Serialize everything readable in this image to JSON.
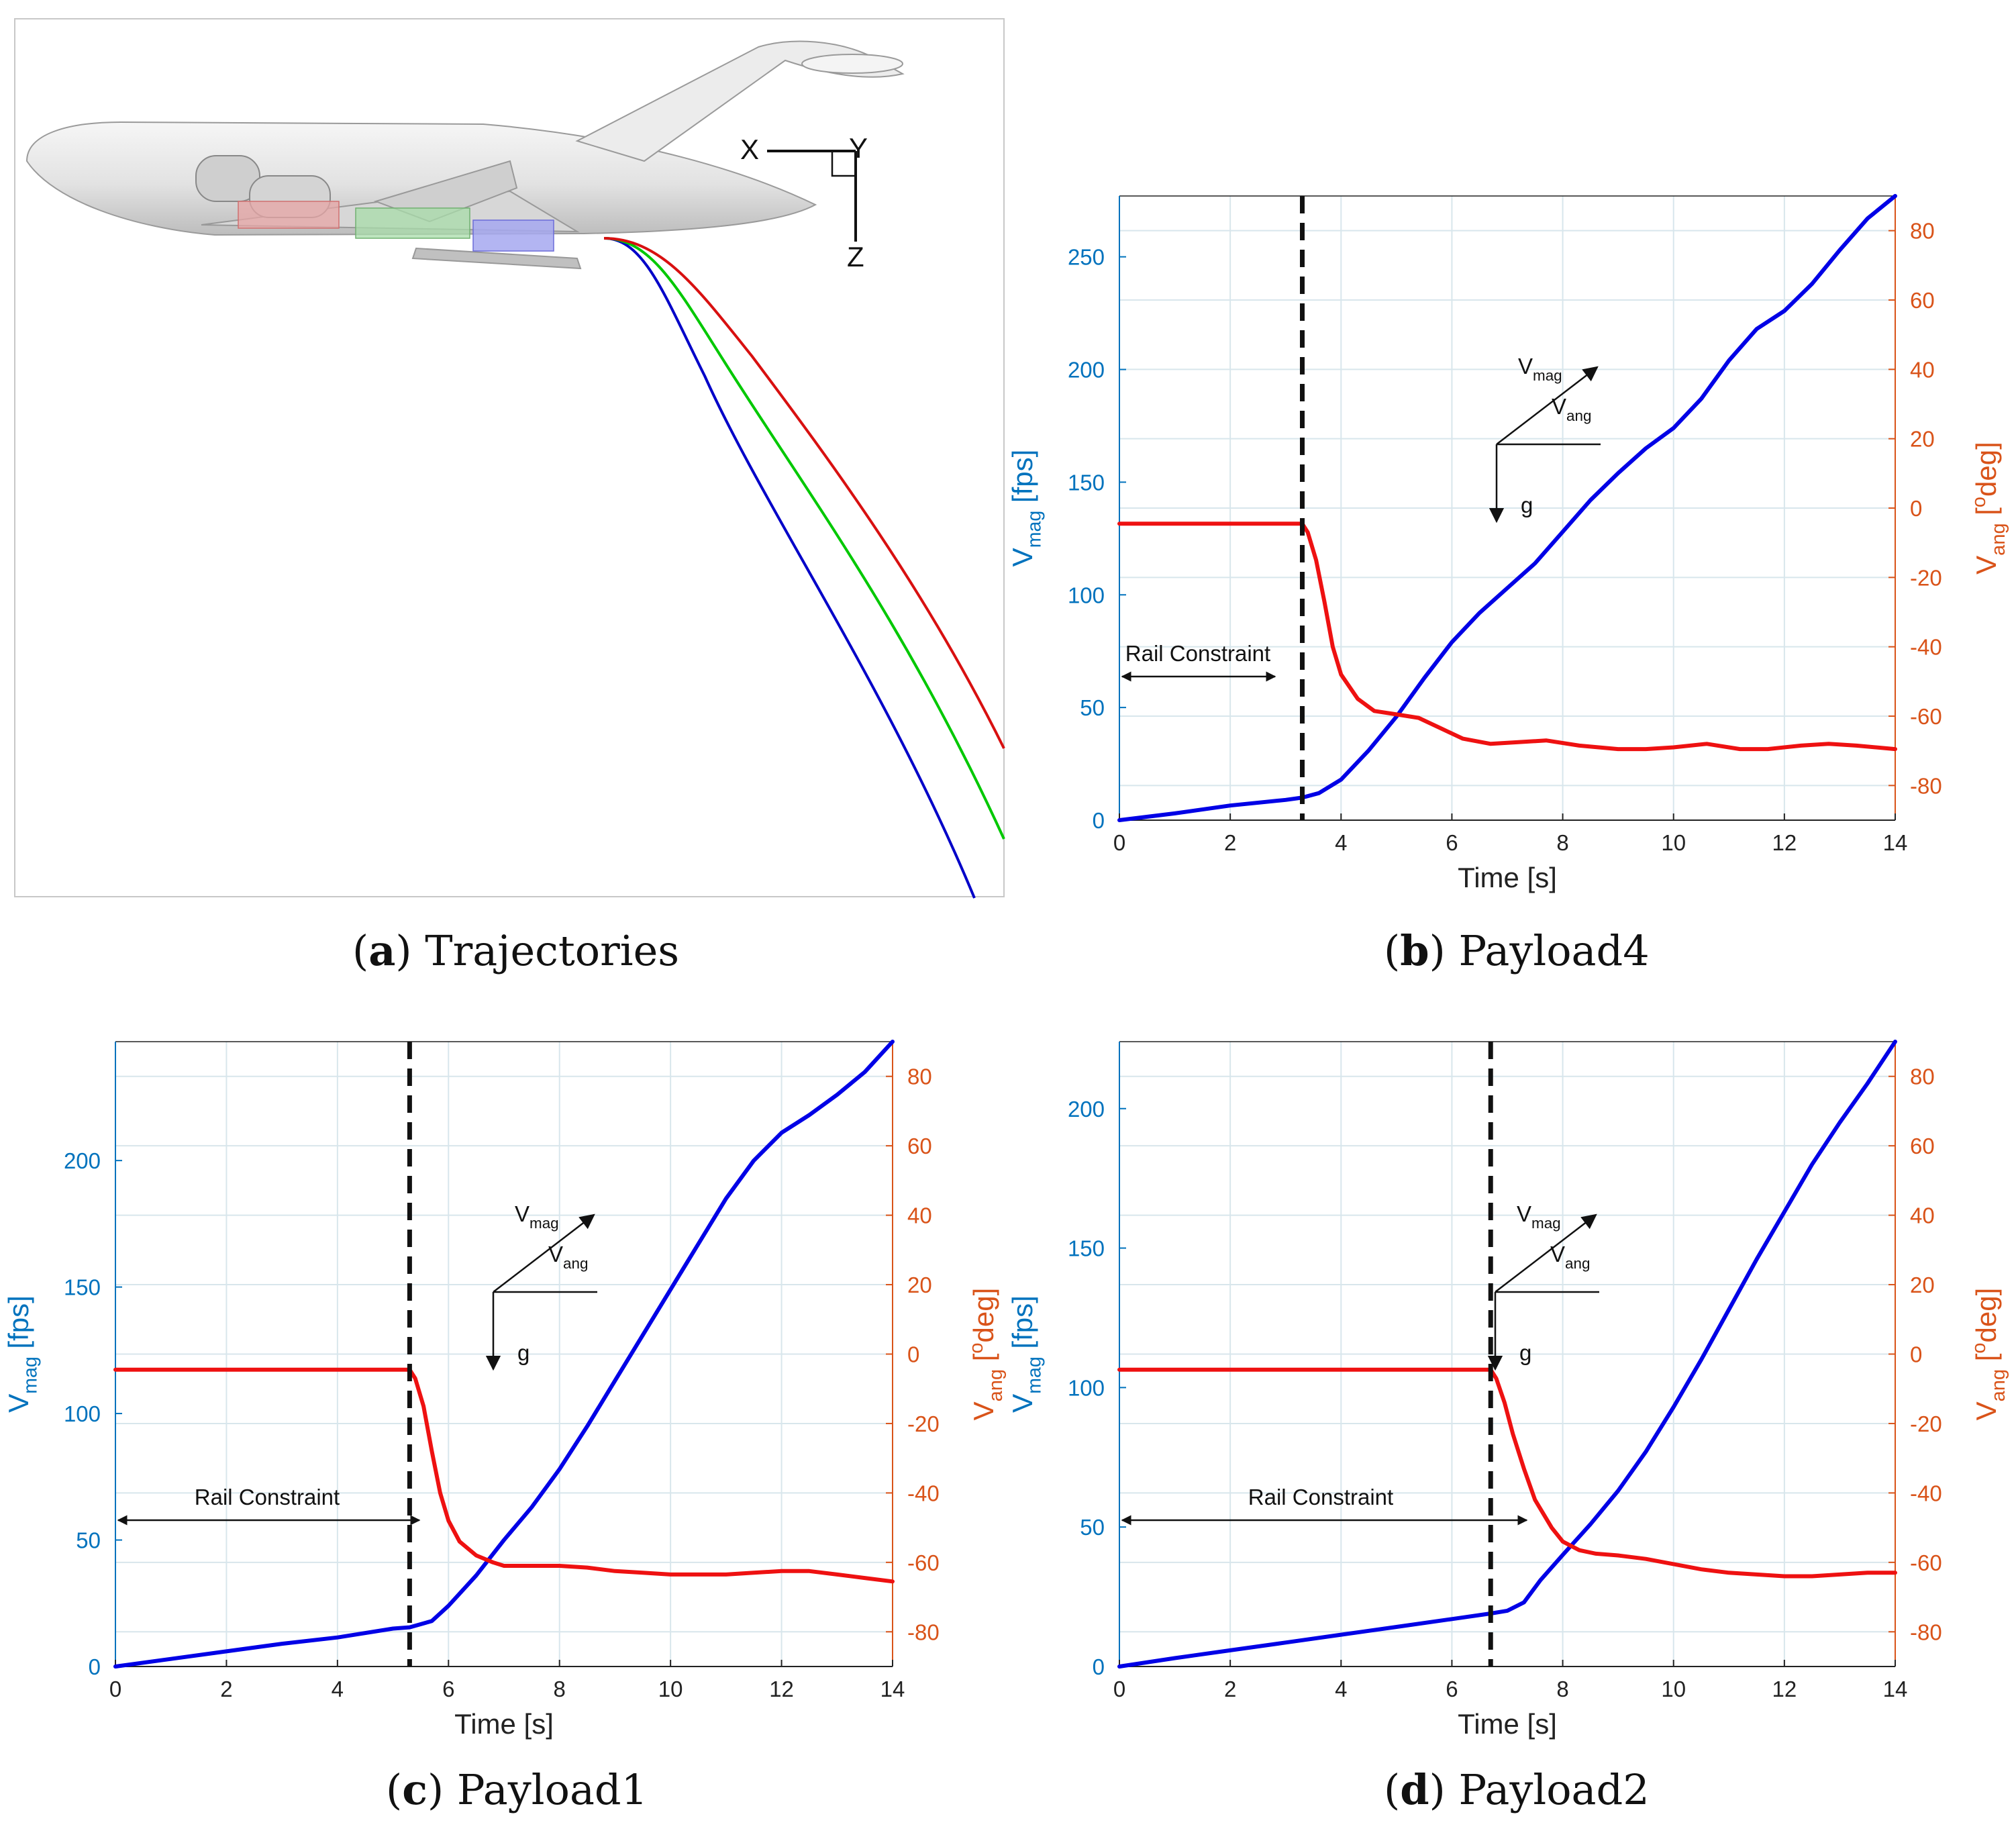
{
  "captions": [
    {
      "tag": "a",
      "text": "Trajectories"
    },
    {
      "tag": "b",
      "text": "Payload4"
    },
    {
      "tag": "c",
      "text": "Payload1"
    },
    {
      "tag": "d",
      "text": "Payload2"
    }
  ],
  "trajectory_panel": {
    "axis_labels": {
      "x": "X",
      "y": "Y",
      "z": "Z"
    },
    "trajectory_colors": [
      "#0000c8",
      "#00c800",
      "#d81010"
    ]
  },
  "plot_text": {
    "xlabel": "Time [s]",
    "ylabel_left": {
      "main": "V",
      "sub": "mag",
      "unit": " [fps]"
    },
    "ylabel_right": {
      "main": "V",
      "sub": "ang",
      "unit_pre": " [",
      "sup": "o",
      "unit_post": "deg]"
    },
    "rail_label": "Rail Constraint",
    "vmag_label": {
      "main": "V",
      "sub": "mag"
    },
    "vang_label": {
      "main": "V",
      "sub": "ang"
    },
    "g_label": "g"
  },
  "colors": {
    "vmag": "#0000e6",
    "vang": "#ee1111",
    "left_axis": "#0072bd",
    "right_axis": "#d95319",
    "grid": "#d8e6ec"
  },
  "chart_data": [
    {
      "type": "line",
      "panel": "b",
      "title": "Payload4",
      "xlabel": "Time [s]",
      "ylabel": "Vmag [fps]",
      "ylabel_right": "Vang [odeg]",
      "xlim": [
        0,
        14
      ],
      "ylim": [
        0,
        277
      ],
      "ylim_right": [
        -90,
        90
      ],
      "xticks": [
        0,
        2,
        4,
        6,
        8,
        10,
        12,
        14
      ],
      "yticks": [
        0,
        50,
        100,
        150,
        200,
        250
      ],
      "yticks_right": [
        -80,
        -60,
        -40,
        -20,
        0,
        20,
        40,
        60,
        80
      ],
      "grid": true,
      "rail_release_time": 3.3,
      "series": [
        {
          "name": "Vmag",
          "axis": "left",
          "x": [
            0,
            1,
            2,
            3,
            3.3,
            3.6,
            4,
            4.5,
            5,
            5.5,
            6,
            6.5,
            7,
            7.5,
            8,
            8.5,
            9,
            9.5,
            10,
            10.5,
            11,
            11.5,
            12,
            12.5,
            13,
            13.5,
            14
          ],
          "y": [
            0,
            3,
            6.5,
            9,
            10,
            12,
            18,
            31,
            46,
            63,
            79,
            92,
            103,
            114,
            128,
            142,
            154,
            165,
            174,
            187,
            204,
            218,
            226,
            238,
            253,
            267,
            277
          ]
        },
        {
          "name": "Vang",
          "axis": "right",
          "x": [
            0,
            3.3,
            3.4,
            3.55,
            3.7,
            3.85,
            4,
            4.3,
            4.6,
            5,
            5.4,
            5.8,
            6.2,
            6.7,
            7.2,
            7.7,
            8.3,
            9,
            9.5,
            10,
            10.6,
            11.2,
            11.7,
            12.3,
            12.8,
            13.3,
            14
          ],
          "y": [
            -4.5,
            -4.5,
            -7,
            -15,
            -27,
            -40,
            -48,
            -55,
            -58.5,
            -59.5,
            -60.5,
            -63.5,
            -66.5,
            -68,
            -67.5,
            -67,
            -68.5,
            -69.5,
            -69.5,
            -69,
            -68,
            -69.5,
            -69.5,
            -68.5,
            -68,
            -68.5,
            -69.5
          ]
        }
      ]
    },
    {
      "type": "line",
      "panel": "c",
      "title": "Payload1",
      "xlabel": "Time [s]",
      "ylabel": "Vmag [fps]",
      "ylabel_right": "Vang [odeg]",
      "xlim": [
        0,
        14
      ],
      "ylim": [
        0,
        247
      ],
      "ylim_right": [
        -90,
        90
      ],
      "xticks": [
        0,
        2,
        4,
        6,
        8,
        10,
        12,
        14
      ],
      "yticks": [
        0,
        50,
        100,
        150,
        200
      ],
      "yticks_right": [
        -80,
        -60,
        -40,
        -20,
        0,
        20,
        40,
        60,
        80
      ],
      "grid": true,
      "rail_release_time": 5.3,
      "series": [
        {
          "name": "Vmag",
          "axis": "left",
          "x": [
            0,
            1,
            2,
            3,
            4,
            5,
            5.3,
            5.7,
            6,
            6.5,
            7,
            7.5,
            8,
            8.5,
            9,
            9.5,
            10,
            10.5,
            11,
            11.5,
            12,
            12.5,
            13,
            13.5,
            14
          ],
          "y": [
            0,
            3,
            6,
            9,
            11.5,
            15,
            15.5,
            18,
            24,
            36,
            50,
            63,
            78,
            95,
            113,
            131,
            149,
            167,
            185,
            200,
            211,
            218,
            226,
            235,
            247
          ]
        },
        {
          "name": "Vang",
          "axis": "right",
          "x": [
            0,
            5.3,
            5.4,
            5.55,
            5.7,
            5.85,
            6,
            6.2,
            6.5,
            6.8,
            7,
            7.5,
            8,
            8.5,
            9,
            9.5,
            10,
            10.5,
            11,
            11.5,
            12,
            12.5,
            13,
            13.5,
            14
          ],
          "y": [
            -4.5,
            -4.5,
            -7,
            -15,
            -28,
            -40,
            -48,
            -54,
            -58,
            -60,
            -61,
            -61,
            -61,
            -61.5,
            -62.5,
            -63,
            -63.5,
            -63.5,
            -63.5,
            -63,
            -62.5,
            -62.5,
            -63.5,
            -64.5,
            -65.5
          ]
        }
      ]
    },
    {
      "type": "line",
      "panel": "d",
      "title": "Payload2",
      "xlabel": "Time [s]",
      "ylabel": "Vmag [fps]",
      "ylabel_right": "Vang [odeg]",
      "xlim": [
        0,
        14
      ],
      "ylim": [
        0,
        224
      ],
      "ylim_right": [
        -90,
        90
      ],
      "xticks": [
        0,
        2,
        4,
        6,
        8,
        10,
        12,
        14
      ],
      "yticks": [
        0,
        50,
        100,
        150,
        200
      ],
      "yticks_right": [
        -80,
        -60,
        -40,
        -20,
        0,
        20,
        40,
        60,
        80
      ],
      "grid": true,
      "rail_release_time": 6.7,
      "series": [
        {
          "name": "Vmag",
          "axis": "left",
          "x": [
            0,
            1,
            2,
            3,
            4,
            5,
            6,
            6.7,
            7,
            7.3,
            7.6,
            8,
            8.5,
            9,
            9.5,
            10,
            10.5,
            11,
            11.5,
            12,
            12.5,
            13,
            13.5,
            14
          ],
          "y": [
            0,
            3,
            5.8,
            8.6,
            11.4,
            14.2,
            17,
            19,
            20,
            23,
            31,
            40,
            51,
            63,
            77,
            93,
            110,
            128,
            146,
            163,
            180,
            195,
            209,
            224
          ]
        },
        {
          "name": "Vang",
          "axis": "right",
          "x": [
            0,
            6.7,
            6.8,
            6.95,
            7.1,
            7.3,
            7.5,
            7.8,
            8,
            8.3,
            8.6,
            9,
            9.5,
            10,
            10.5,
            11,
            11.5,
            12,
            12.5,
            13,
            13.5,
            14
          ],
          "y": [
            -4.5,
            -4.5,
            -7,
            -14,
            -23,
            -33,
            -42,
            -50,
            -54,
            -56.5,
            -57.5,
            -58,
            -59,
            -60.5,
            -62,
            -63,
            -63.5,
            -64,
            -64,
            -63.5,
            -63,
            -63
          ]
        }
      ]
    }
  ]
}
